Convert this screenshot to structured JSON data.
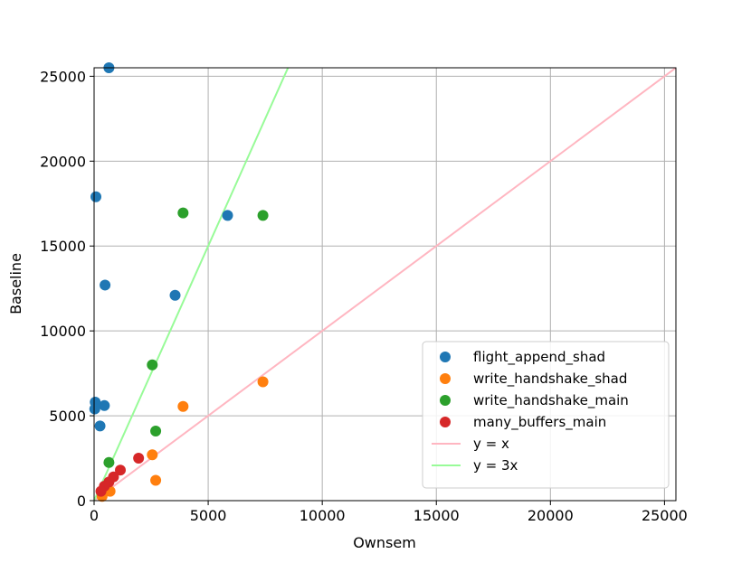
{
  "chart_data": {
    "type": "scatter",
    "xlabel": "Ownsem",
    "ylabel": "Baseline",
    "xlim": [
      0,
      25500
    ],
    "ylim": [
      0,
      25500
    ],
    "xticks": [
      0,
      5000,
      10000,
      15000,
      20000,
      25000
    ],
    "yticks": [
      0,
      5000,
      10000,
      15000,
      20000,
      25000
    ],
    "grid": true,
    "legend_position": "lower-right",
    "series": [
      {
        "name": "flight_append_shad",
        "color": "#1f77b4",
        "points": [
          {
            "x": 650,
            "y": 25500
          },
          {
            "x": 80,
            "y": 17900
          },
          {
            "x": 480,
            "y": 12700
          },
          {
            "x": 3550,
            "y": 12100
          },
          {
            "x": 5850,
            "y": 16800
          },
          {
            "x": 50,
            "y": 5800
          },
          {
            "x": 30,
            "y": 5400
          },
          {
            "x": 450,
            "y": 5600
          },
          {
            "x": 260,
            "y": 4400
          }
        ]
      },
      {
        "name": "write_handshake_shad",
        "color": "#ff7f0e",
        "points": [
          {
            "x": 7400,
            "y": 7000
          },
          {
            "x": 3900,
            "y": 5550
          },
          {
            "x": 2550,
            "y": 2700
          },
          {
            "x": 2700,
            "y": 1200
          },
          {
            "x": 700,
            "y": 550
          },
          {
            "x": 350,
            "y": 250
          }
        ]
      },
      {
        "name": "write_handshake_main",
        "color": "#2ca02c",
        "points": [
          {
            "x": 3900,
            "y": 16950
          },
          {
            "x": 7400,
            "y": 16800
          },
          {
            "x": 2550,
            "y": 8000
          },
          {
            "x": 2700,
            "y": 4100
          },
          {
            "x": 650,
            "y": 2250
          }
        ]
      },
      {
        "name": "many_buffers_main",
        "color": "#d62728",
        "points": [
          {
            "x": 1150,
            "y": 1800
          },
          {
            "x": 1950,
            "y": 2500
          },
          {
            "x": 850,
            "y": 1400
          },
          {
            "x": 650,
            "y": 1100
          },
          {
            "x": 450,
            "y": 850
          },
          {
            "x": 300,
            "y": 550
          }
        ]
      }
    ],
    "lines": [
      {
        "name": "y = x",
        "slope": 1,
        "color": "#ffb6c1"
      },
      {
        "name": "y = 3x",
        "slope": 3,
        "color": "#98fb98"
      }
    ]
  }
}
